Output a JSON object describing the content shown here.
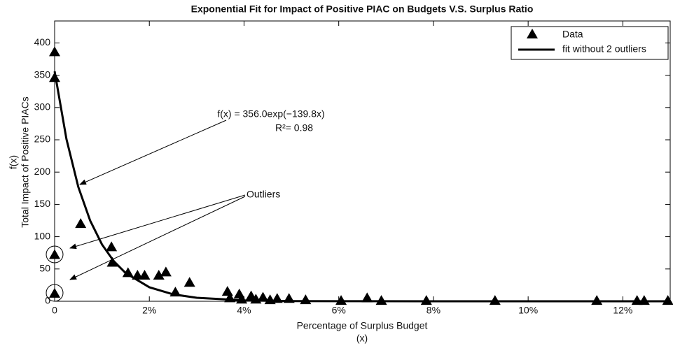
{
  "chart_data": {
    "type": "scatter",
    "title": "Exponential Fit for Impact of Positive PIAC on Budgets V.S. Surplus Ratio",
    "x_label": "Percentage of Surplus Budget",
    "x_label_sub": "(x)",
    "y_label": "Total Impact of Positive PIACs",
    "y_label_top": "f(x)",
    "xlim": [
      0,
      13
    ],
    "ylim": [
      0,
      434
    ],
    "xticks": [
      0,
      {
        "value": 2,
        "label": "2%"
      },
      {
        "value": 4,
        "label": "4%"
      },
      {
        "value": 6,
        "label": "6%"
      },
      {
        "value": 8,
        "label": "8%"
      },
      {
        "value": 10,
        "label": "10%"
      },
      {
        "value": 12,
        "label": "12%"
      }
    ],
    "yticks": [
      0,
      50,
      100,
      150,
      200,
      250,
      300,
      350,
      400
    ],
    "legend_position": "upper right",
    "annotations": {
      "equation": "f(x) = 356.0exp(−139.8x)",
      "r_squared": "R²= 0.98",
      "outliers": "Outliers"
    },
    "series": [
      {
        "name": "Data",
        "type": "scatter",
        "color": "#000000",
        "x": [
          0,
          0,
          0,
          0,
          0.55,
          1.2,
          1.22,
          1.55,
          1.75,
          1.9,
          2.2,
          2.35,
          2.55,
          2.85,
          3.65,
          3.7,
          3.9,
          3.95,
          4.15,
          4.25,
          4.4,
          4.55,
          4.7,
          4.95,
          5.3,
          6.05,
          6.6,
          6.9,
          7.85,
          9.3,
          11.45,
          12.3,
          12.45,
          12.95
        ],
        "values": [
          386,
          346,
          72,
          12,
          120,
          84,
          60,
          44,
          40,
          40,
          40,
          45,
          14,
          29,
          15,
          5,
          11,
          3,
          8,
          3,
          6,
          2,
          4,
          4,
          2,
          1,
          5,
          1,
          1,
          1,
          1,
          1,
          1,
          1
        ]
      },
      {
        "name": "fit without 2 outliers",
        "type": "line",
        "color": "#000000",
        "x": [
          0,
          0.25,
          0.5,
          0.75,
          1,
          1.25,
          1.5,
          2,
          2.5,
          3,
          4,
          5,
          6,
          8,
          13
        ],
        "values": [
          356,
          251,
          177,
          125,
          88,
          62,
          43.7,
          21.7,
          10.8,
          5.4,
          1.3,
          0.3,
          0.1,
          0,
          0
        ]
      }
    ]
  }
}
